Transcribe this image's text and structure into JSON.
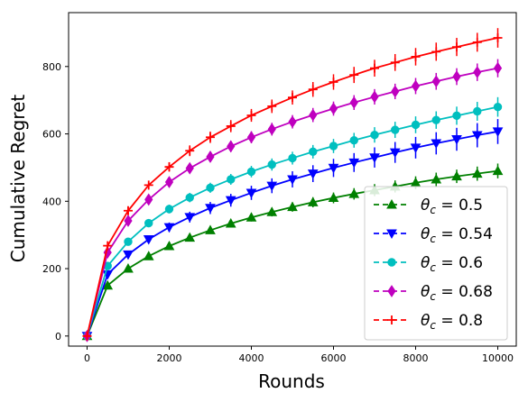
{
  "chart_data": {
    "type": "line",
    "xlabel": "Rounds",
    "ylabel": "Cumulative Regret",
    "xlim": [
      -450,
      10450
    ],
    "ylim": [
      -30,
      960
    ],
    "xticks": [
      0,
      2000,
      4000,
      6000,
      8000,
      10000
    ],
    "yticks": [
      0,
      200,
      400,
      600,
      800
    ],
    "grid": false,
    "legend_position": "lower right",
    "x": [
      0,
      500,
      1000,
      1500,
      2000,
      2500,
      3000,
      3500,
      4000,
      4500,
      5000,
      5500,
      6000,
      6500,
      7000,
      7500,
      8000,
      8500,
      9000,
      9500,
      10000
    ],
    "series": [
      {
        "name": "θc = 0.5",
        "legend_prefix": "θ",
        "legend_sub": "c",
        "legend_value": " = 0.5",
        "color": "#008000",
        "linestyle": "solid",
        "marker": "triangle-up",
        "values": [
          0,
          150,
          200,
          237,
          267,
          292,
          314,
          334,
          352,
          368,
          383,
          397,
          410,
          422,
          433,
          444,
          455,
          465,
          474,
          482,
          490
        ],
        "errors": [
          0,
          5,
          6,
          7,
          8,
          9,
          10,
          11,
          12,
          13,
          14,
          15,
          16,
          17,
          18,
          18,
          19,
          20,
          20,
          21,
          22
        ]
      },
      {
        "name": "θc = 0.54",
        "legend_prefix": "θ",
        "legend_sub": "c",
        "legend_value": " = 0.54",
        "color": "#0000ff",
        "linestyle": "solid",
        "marker": "triangle-down",
        "values": [
          0,
          183,
          242,
          287,
          323,
          353,
          380,
          403,
          425,
          446,
          465,
          482,
          499,
          515,
          530,
          545,
          559,
          572,
          584,
          596,
          607
        ],
        "errors": [
          0,
          8,
          10,
          12,
          14,
          16,
          18,
          19,
          21,
          22,
          24,
          25,
          27,
          28,
          30,
          31,
          32,
          33,
          34,
          36,
          37
        ]
      },
      {
        "name": "θc = 0.6",
        "legend_prefix": "θ",
        "legend_sub": "c",
        "legend_value": " = 0.6",
        "color": "#00bfbf",
        "linestyle": "solid",
        "marker": "circle",
        "values": [
          0,
          208,
          280,
          335,
          377,
          411,
          440,
          465,
          488,
          509,
          528,
          547,
          564,
          581,
          597,
          612,
          627,
          641,
          654,
          667,
          680
        ],
        "errors": [
          0,
          8,
          10,
          12,
          13,
          14,
          15,
          16,
          17,
          18,
          19,
          20,
          21,
          22,
          23,
          24,
          25,
          26,
          27,
          28,
          29
        ]
      },
      {
        "name": "θc = 0.68",
        "legend_prefix": "θ",
        "legend_sub": "c",
        "legend_value": " = 0.68",
        "color": "#bf00bf",
        "linestyle": "solid",
        "marker": "diamond",
        "values": [
          0,
          248,
          342,
          405,
          457,
          498,
          532,
          563,
          590,
          614,
          636,
          656,
          675,
          693,
          710,
          726,
          742,
          756,
          770,
          783,
          795
        ],
        "errors": [
          0,
          9,
          11,
          13,
          14,
          15,
          16,
          17,
          18,
          19,
          20,
          21,
          21,
          22,
          23,
          23,
          24,
          25,
          25,
          26,
          27
        ]
      },
      {
        "name": "θc = 0.8",
        "legend_prefix": "θ",
        "legend_sub": "c",
        "legend_value": " = 0.8",
        "color": "#ff0000",
        "linestyle": "solid",
        "marker": "plus",
        "values": [
          0,
          268,
          372,
          448,
          502,
          550,
          590,
          623,
          655,
          682,
          708,
          732,
          754,
          775,
          795,
          812,
          829,
          844,
          858,
          872,
          885
        ],
        "errors": [
          0,
          9,
          11,
          13,
          14,
          16,
          17,
          18,
          19,
          20,
          21,
          22,
          23,
          24,
          25,
          25,
          26,
          27,
          27,
          28,
          29
        ]
      }
    ]
  }
}
